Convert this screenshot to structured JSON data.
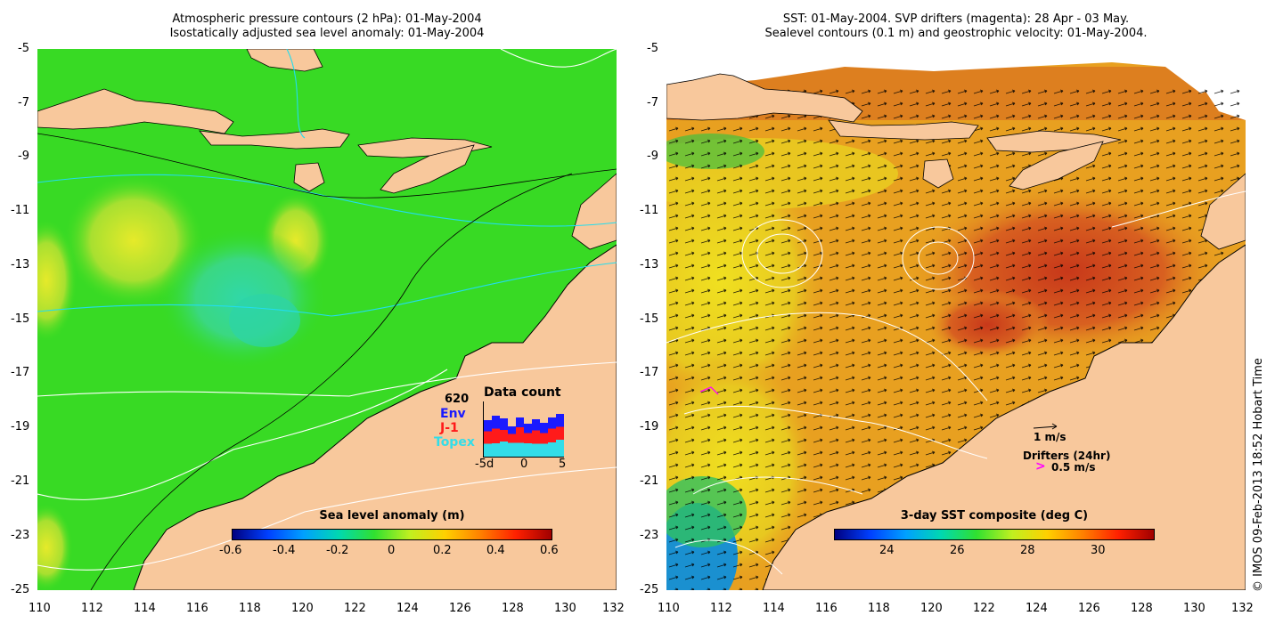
{
  "left_panel": {
    "title_line1": "Atmospheric pressure contours (2 hPa): 01-May-2004",
    "title_line2": "Isostatically adjusted sea level anomaly: 01-May-2004",
    "colorbar_title": "Sea level anomaly (m)",
    "colorbar_ticks": [
      "-0.6",
      "-0.4",
      "-0.2",
      "0",
      "0.2",
      "0.4",
      "0.6"
    ],
    "inset": {
      "title": "Data count",
      "total": "620",
      "missions": [
        {
          "name": "Env",
          "color": "#1a1aff"
        },
        {
          "name": "J-1",
          "color": "#ff1a1a"
        },
        {
          "name": "Topex",
          "color": "#33dde8"
        }
      ],
      "x_ticks": [
        "-5d",
        "0",
        "5"
      ]
    }
  },
  "right_panel": {
    "title_line1": "SST: 01-May-2004. SVP drifters (magenta): 28 Apr - 03 May.",
    "title_line2": "Sealevel contours (0.1 m) and geostrophic velocity: 01-May-2004.",
    "colorbar_title": "3-day SST composite (deg C)",
    "colorbar_ticks": [
      "24",
      "26",
      "28",
      "30"
    ],
    "velocity_scale_label": "1 m/s",
    "drifter_legend_title": "Drifters (24hr)",
    "drifter_legend_value": "0.5 m/s",
    "drifter_marker": ">"
  },
  "axes": {
    "lon_ticks": [
      "110",
      "112",
      "114",
      "116",
      "118",
      "120",
      "122",
      "124",
      "126",
      "128",
      "130",
      "132"
    ],
    "lat_ticks": [
      "-5",
      "-7",
      "-9",
      "-11",
      "-13",
      "-15",
      "-17",
      "-19",
      "-21",
      "-23",
      "-25"
    ],
    "lon_range": [
      110,
      132
    ],
    "lat_range": [
      -25,
      -5
    ]
  },
  "credit": "© IMOS 09-Feb-2013 18:52 Hobart Time",
  "colors": {
    "land": "#f8c89c",
    "sla_background": "#33dd22",
    "sst_background": "#e8a020",
    "contour_white": "#ffffff",
    "contour_cyan": "#22ddee",
    "drifter": "#ff00ff"
  }
}
